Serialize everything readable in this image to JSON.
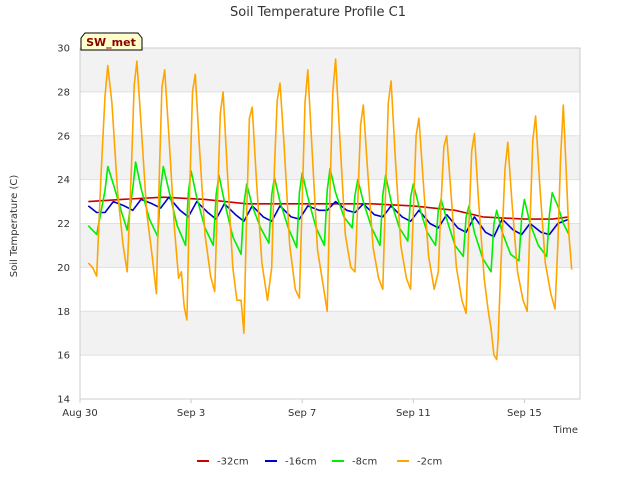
{
  "chart_data": {
    "type": "line",
    "title": "Soil Temperature Profile C1",
    "xlabel": "Time",
    "ylabel": "Soil Temperature (C)",
    "badge": "SW_met",
    "x_unit": "day of record (0 = Aug 30)",
    "xlim": [
      0,
      18
    ],
    "ylim": [
      14,
      30
    ],
    "y_ticks": [
      14,
      16,
      18,
      20,
      22,
      24,
      26,
      28,
      30
    ],
    "x_ticks": [
      {
        "value": 0,
        "label": "Aug 30"
      },
      {
        "value": 4,
        "label": "Sep 3"
      },
      {
        "value": 8,
        "label": "Sep 7"
      },
      {
        "value": 12,
        "label": "Sep 11"
      },
      {
        "value": 16,
        "label": "Sep 15"
      }
    ],
    "grid": "horizontal bands",
    "legend_position": "bottom",
    "series": [
      {
        "name": "-32cm",
        "color": "#cc0000",
        "points": [
          [
            0.3,
            23.0
          ],
          [
            1.5,
            23.1
          ],
          [
            3.0,
            23.2
          ],
          [
            4.5,
            23.1
          ],
          [
            6.0,
            22.9
          ],
          [
            7.5,
            22.9
          ],
          [
            9.0,
            22.9
          ],
          [
            10.5,
            22.9
          ],
          [
            12.0,
            22.8
          ],
          [
            13.5,
            22.6
          ],
          [
            14.5,
            22.3
          ],
          [
            16.0,
            22.2
          ],
          [
            17.0,
            22.2
          ],
          [
            17.6,
            22.3
          ]
        ]
      },
      {
        "name": "-16cm",
        "color": "#0000cc",
        "points": [
          [
            0.3,
            22.8
          ],
          [
            0.6,
            22.5
          ],
          [
            0.9,
            22.5
          ],
          [
            1.2,
            23.0
          ],
          [
            1.6,
            22.8
          ],
          [
            1.9,
            22.6
          ],
          [
            2.2,
            23.1
          ],
          [
            2.6,
            22.9
          ],
          [
            2.9,
            22.7
          ],
          [
            3.2,
            23.2
          ],
          [
            3.6,
            22.6
          ],
          [
            3.9,
            22.3
          ],
          [
            4.2,
            23.0
          ],
          [
            4.6,
            22.5
          ],
          [
            4.9,
            22.2
          ],
          [
            5.2,
            22.9
          ],
          [
            5.6,
            22.4
          ],
          [
            5.9,
            22.1
          ],
          [
            6.2,
            22.8
          ],
          [
            6.6,
            22.3
          ],
          [
            6.9,
            22.1
          ],
          [
            7.2,
            22.8
          ],
          [
            7.6,
            22.3
          ],
          [
            7.9,
            22.2
          ],
          [
            8.2,
            22.8
          ],
          [
            8.6,
            22.6
          ],
          [
            8.9,
            22.6
          ],
          [
            9.2,
            23.0
          ],
          [
            9.6,
            22.6
          ],
          [
            9.9,
            22.5
          ],
          [
            10.2,
            22.9
          ],
          [
            10.6,
            22.4
          ],
          [
            10.9,
            22.3
          ],
          [
            11.2,
            22.8
          ],
          [
            11.6,
            22.3
          ],
          [
            11.9,
            22.1
          ],
          [
            12.2,
            22.6
          ],
          [
            12.6,
            22.0
          ],
          [
            12.9,
            21.8
          ],
          [
            13.2,
            22.4
          ],
          [
            13.6,
            21.8
          ],
          [
            13.9,
            21.6
          ],
          [
            14.2,
            22.3
          ],
          [
            14.6,
            21.6
          ],
          [
            14.9,
            21.4
          ],
          [
            15.2,
            22.2
          ],
          [
            15.6,
            21.7
          ],
          [
            15.9,
            21.5
          ],
          [
            16.2,
            22.0
          ],
          [
            16.6,
            21.6
          ],
          [
            16.9,
            21.5
          ],
          [
            17.2,
            22.0
          ],
          [
            17.6,
            22.2
          ]
        ]
      },
      {
        "name": "-8cm",
        "color": "#00ee00",
        "points": [
          [
            0.3,
            21.9
          ],
          [
            0.6,
            21.5
          ],
          [
            0.9,
            23.5
          ],
          [
            1.0,
            24.6
          ],
          [
            1.2,
            23.8
          ],
          [
            1.5,
            22.5
          ],
          [
            1.7,
            21.7
          ],
          [
            1.9,
            23.6
          ],
          [
            2.0,
            24.8
          ],
          [
            2.2,
            23.6
          ],
          [
            2.5,
            22.2
          ],
          [
            2.8,
            21.4
          ],
          [
            2.9,
            23.6
          ],
          [
            3.0,
            24.6
          ],
          [
            3.2,
            23.5
          ],
          [
            3.5,
            21.9
          ],
          [
            3.8,
            21.0
          ],
          [
            3.9,
            23.4
          ],
          [
            4.0,
            24.4
          ],
          [
            4.2,
            23.2
          ],
          [
            4.5,
            21.8
          ],
          [
            4.8,
            21.0
          ],
          [
            4.9,
            23.3
          ],
          [
            5.0,
            24.2
          ],
          [
            5.2,
            23.0
          ],
          [
            5.5,
            21.4
          ],
          [
            5.8,
            20.6
          ],
          [
            5.9,
            22.9
          ],
          [
            6.0,
            23.8
          ],
          [
            6.2,
            22.8
          ],
          [
            6.5,
            21.8
          ],
          [
            6.8,
            21.1
          ],
          [
            6.9,
            23.3
          ],
          [
            7.0,
            24.1
          ],
          [
            7.2,
            23.0
          ],
          [
            7.5,
            21.8
          ],
          [
            7.8,
            20.9
          ],
          [
            7.9,
            23.4
          ],
          [
            8.0,
            24.3
          ],
          [
            8.2,
            23.2
          ],
          [
            8.5,
            21.8
          ],
          [
            8.8,
            21.0
          ],
          [
            8.9,
            23.5
          ],
          [
            9.0,
            24.5
          ],
          [
            9.2,
            23.4
          ],
          [
            9.5,
            22.3
          ],
          [
            9.8,
            21.8
          ],
          [
            9.9,
            23.3
          ],
          [
            10.0,
            24.0
          ],
          [
            10.2,
            23.0
          ],
          [
            10.5,
            21.8
          ],
          [
            10.8,
            21.0
          ],
          [
            10.9,
            23.3
          ],
          [
            11.0,
            24.2
          ],
          [
            11.2,
            23.0
          ],
          [
            11.5,
            21.8
          ],
          [
            11.8,
            21.2
          ],
          [
            11.9,
            23.2
          ],
          [
            12.0,
            23.8
          ],
          [
            12.2,
            22.8
          ],
          [
            12.5,
            21.6
          ],
          [
            12.8,
            21.0
          ],
          [
            12.9,
            22.6
          ],
          [
            13.0,
            23.1
          ],
          [
            13.2,
            22.2
          ],
          [
            13.5,
            21.0
          ],
          [
            13.8,
            20.5
          ],
          [
            13.9,
            22.3
          ],
          [
            14.0,
            22.8
          ],
          [
            14.2,
            21.6
          ],
          [
            14.5,
            20.4
          ],
          [
            14.8,
            19.8
          ],
          [
            14.9,
            22.0
          ],
          [
            15.0,
            22.6
          ],
          [
            15.2,
            21.6
          ],
          [
            15.5,
            20.6
          ],
          [
            15.8,
            20.3
          ],
          [
            15.9,
            22.3
          ],
          [
            16.0,
            23.1
          ],
          [
            16.2,
            22.0
          ],
          [
            16.5,
            21.0
          ],
          [
            16.8,
            20.5
          ],
          [
            16.9,
            22.4
          ],
          [
            17.0,
            23.4
          ],
          [
            17.2,
            22.8
          ],
          [
            17.4,
            22.0
          ],
          [
            17.6,
            21.5
          ]
        ]
      },
      {
        "name": "-2cm",
        "color": "#ffa500",
        "points": [
          [
            0.3,
            20.2
          ],
          [
            0.45,
            20.0
          ],
          [
            0.6,
            19.6
          ],
          [
            0.75,
            24.0
          ],
          [
            0.9,
            27.8
          ],
          [
            1.0,
            29.2
          ],
          [
            1.15,
            27.5
          ],
          [
            1.35,
            23.5
          ],
          [
            1.55,
            21.0
          ],
          [
            1.7,
            19.8
          ],
          [
            1.85,
            24.5
          ],
          [
            1.95,
            28.3
          ],
          [
            2.05,
            29.4
          ],
          [
            2.2,
            26.5
          ],
          [
            2.4,
            22.5
          ],
          [
            2.6,
            20.5
          ],
          [
            2.75,
            18.8
          ],
          [
            2.85,
            24.0
          ],
          [
            2.95,
            28.2
          ],
          [
            3.05,
            29.0
          ],
          [
            3.2,
            26.0
          ],
          [
            3.4,
            21.8
          ],
          [
            3.55,
            19.5
          ],
          [
            3.65,
            19.8
          ],
          [
            3.75,
            18.2
          ],
          [
            3.85,
            17.6
          ],
          [
            3.95,
            23.5
          ],
          [
            4.05,
            28.0
          ],
          [
            4.15,
            28.8
          ],
          [
            4.3,
            25.5
          ],
          [
            4.5,
            21.5
          ],
          [
            4.7,
            19.6
          ],
          [
            4.85,
            18.9
          ],
          [
            4.95,
            23.0
          ],
          [
            5.05,
            27.0
          ],
          [
            5.15,
            28.0
          ],
          [
            5.3,
            24.5
          ],
          [
            5.5,
            20.0
          ],
          [
            5.65,
            18.5
          ],
          [
            5.8,
            18.5
          ],
          [
            5.9,
            17.0
          ],
          [
            6.0,
            22.5
          ],
          [
            6.1,
            26.8
          ],
          [
            6.2,
            27.3
          ],
          [
            6.35,
            24.0
          ],
          [
            6.55,
            20.2
          ],
          [
            6.75,
            18.5
          ],
          [
            6.9,
            20.0
          ],
          [
            7.0,
            24.5
          ],
          [
            7.1,
            27.6
          ],
          [
            7.2,
            28.4
          ],
          [
            7.35,
            25.5
          ],
          [
            7.55,
            21.0
          ],
          [
            7.75,
            19.0
          ],
          [
            7.9,
            18.6
          ],
          [
            8.0,
            23.0
          ],
          [
            8.1,
            27.5
          ],
          [
            8.2,
            29.0
          ],
          [
            8.35,
            25.5
          ],
          [
            8.55,
            20.8
          ],
          [
            8.75,
            19.2
          ],
          [
            8.9,
            18.0
          ],
          [
            9.0,
            23.5
          ],
          [
            9.1,
            28.0
          ],
          [
            9.2,
            29.5
          ],
          [
            9.35,
            26.0
          ],
          [
            9.55,
            21.5
          ],
          [
            9.75,
            20.0
          ],
          [
            9.9,
            19.8
          ],
          [
            10.0,
            23.0
          ],
          [
            10.1,
            26.5
          ],
          [
            10.2,
            27.4
          ],
          [
            10.35,
            24.5
          ],
          [
            10.55,
            20.9
          ],
          [
            10.75,
            19.5
          ],
          [
            10.9,
            19.0
          ],
          [
            11.0,
            23.5
          ],
          [
            11.1,
            27.5
          ],
          [
            11.2,
            28.5
          ],
          [
            11.35,
            25.0
          ],
          [
            11.55,
            21.0
          ],
          [
            11.75,
            19.5
          ],
          [
            11.9,
            19.0
          ],
          [
            12.0,
            22.5
          ],
          [
            12.1,
            26.0
          ],
          [
            12.2,
            26.8
          ],
          [
            12.35,
            24.0
          ],
          [
            12.55,
            20.5
          ],
          [
            12.75,
            19.0
          ],
          [
            12.9,
            19.8
          ],
          [
            13.0,
            23.0
          ],
          [
            13.1,
            25.5
          ],
          [
            13.2,
            26.0
          ],
          [
            13.35,
            23.5
          ],
          [
            13.55,
            20.0
          ],
          [
            13.75,
            18.5
          ],
          [
            13.9,
            17.9
          ],
          [
            14.0,
            22.0
          ],
          [
            14.1,
            25.3
          ],
          [
            14.2,
            26.1
          ],
          [
            14.35,
            23.0
          ],
          [
            14.55,
            19.5
          ],
          [
            14.7,
            18.0
          ],
          [
            14.8,
            17.2
          ],
          [
            14.9,
            16.0
          ],
          [
            15.0,
            15.8
          ],
          [
            15.05,
            16.7
          ],
          [
            15.15,
            20.0
          ],
          [
            15.3,
            24.5
          ],
          [
            15.4,
            25.7
          ],
          [
            15.55,
            23.0
          ],
          [
            15.75,
            19.8
          ],
          [
            15.95,
            18.5
          ],
          [
            16.1,
            18.0
          ],
          [
            16.2,
            22.0
          ],
          [
            16.3,
            25.8
          ],
          [
            16.4,
            26.9
          ],
          [
            16.55,
            23.8
          ],
          [
            16.75,
            20.2
          ],
          [
            16.95,
            18.8
          ],
          [
            17.1,
            18.1
          ],
          [
            17.2,
            21.0
          ],
          [
            17.3,
            25.0
          ],
          [
            17.4,
            27.4
          ],
          [
            17.5,
            24.5
          ],
          [
            17.6,
            21.5
          ],
          [
            17.7,
            19.9
          ]
        ]
      }
    ]
  }
}
